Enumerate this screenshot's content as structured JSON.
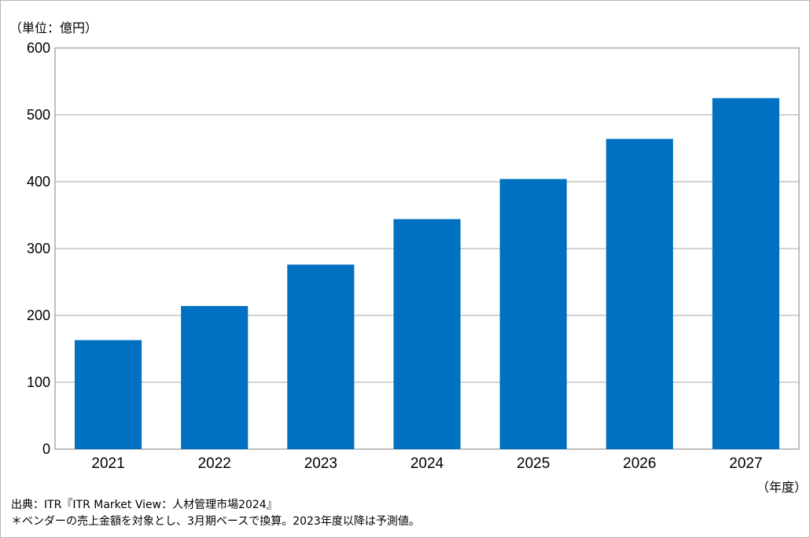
{
  "unit_label": "（単位：億円）",
  "fiscal_year_label": "（年度）",
  "notes": {
    "source": "出典：ITR『ITR Market View：人材管理市場2024』",
    "footnote": "＊ベンダーの売上金額を対象とし、3月期ベースで換算。2023年度以降は予測値。"
  },
  "colors": {
    "bar": "#0070c0",
    "grid": "#a6a6a6",
    "frame": "#b5b5b5"
  },
  "chart_data": {
    "type": "bar",
    "categories": [
      "2021",
      "2022",
      "2023",
      "2024",
      "2025",
      "2026",
      "2027"
    ],
    "values": [
      163,
      214,
      276,
      344,
      404,
      464,
      525
    ],
    "ylim": [
      0,
      600
    ],
    "yticks": [
      0,
      100,
      200,
      300,
      400,
      500,
      600
    ],
    "grid": true,
    "legend": "none",
    "title": "",
    "xlabel": "（年度）",
    "ylabel": "（単位：億円）"
  }
}
